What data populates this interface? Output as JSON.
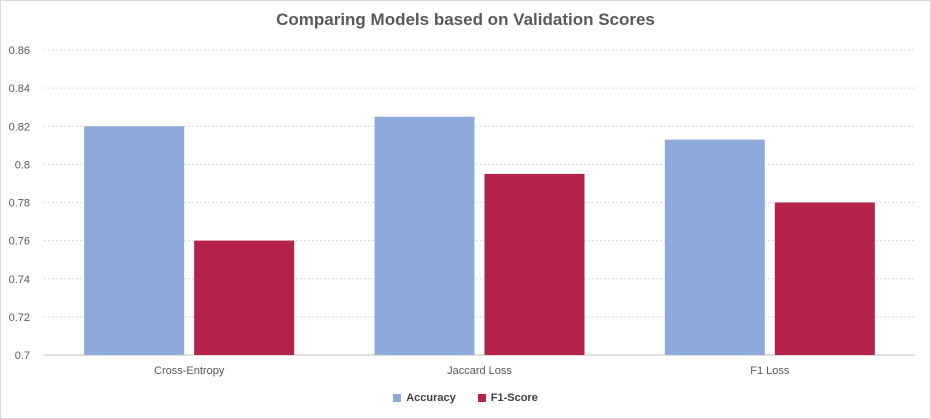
{
  "chart_data": {
    "type": "bar",
    "title": "Comparing Models based on Validation Scores",
    "xlabel": "",
    "ylabel": "",
    "categories": [
      "Cross-Entropy",
      "Jaccard Loss",
      "F1 Loss"
    ],
    "series": [
      {
        "name": "Accuracy",
        "color": "#8eaadb",
        "values": [
          0.82,
          0.825,
          0.813
        ]
      },
      {
        "name": "F1-Score",
        "color": "#b5234a",
        "values": [
          0.76,
          0.795,
          0.78
        ]
      }
    ],
    "ylim": [
      0.7,
      0.86
    ],
    "yticks": [
      "0.7",
      "0.72",
      "0.74",
      "0.76",
      "0.78",
      "0.8",
      "0.82",
      "0.84",
      "0.86"
    ],
    "grid": true,
    "legend_position": "bottom"
  }
}
